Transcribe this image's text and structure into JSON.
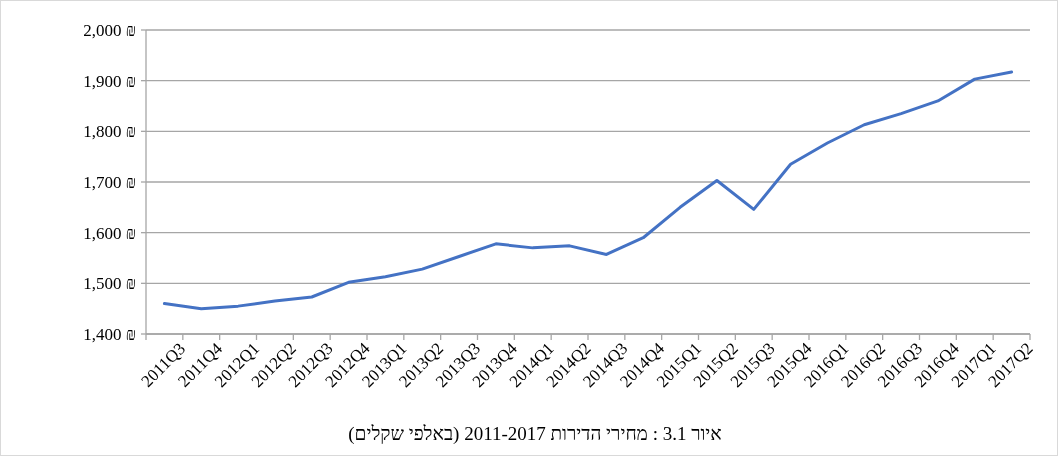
{
  "chart_data": {
    "type": "line",
    "annotations": [
      "איור 3.1 : מחירי הדירות 2011-2017 (באלפי שקלים)"
    ],
    "categories": [
      "2011Q3",
      "2011Q4",
      "2012Q1",
      "2012Q2",
      "2012Q3",
      "2012Q4",
      "2013Q1",
      "2013Q2",
      "2013Q3",
      "2013Q4",
      "2014Q1",
      "2014Q2",
      "2014Q3",
      "2014Q4",
      "2015Q1",
      "2015Q2",
      "2015Q3",
      "2015Q4",
      "2016Q1",
      "2016Q2",
      "2016Q3",
      "2016Q4",
      "2017Q1",
      "2017Q2"
    ],
    "series": [
      {
        "color": "#4472c4",
        "values": [
          1460,
          1450,
          1455,
          1465,
          1473,
          1502,
          1513,
          1528,
          1553,
          1578,
          1570,
          1574,
          1557,
          1590,
          1650,
          1703,
          1646,
          1735,
          1777,
          1813,
          1835,
          1860,
          1903,
          1917
        ]
      }
    ],
    "ylim": [
      1400,
      2000
    ],
    "yticks": [
      {
        "value": 1400,
        "label": "1,400 ₪"
      },
      {
        "value": 1500,
        "label": "1,500 ₪"
      },
      {
        "value": 1600,
        "label": "1,600 ₪"
      },
      {
        "value": 1700,
        "label": "1,700 ₪"
      },
      {
        "value": 1800,
        "label": "1,800 ₪"
      },
      {
        "value": 1900,
        "label": "1,900 ₪"
      },
      {
        "value": 2000,
        "label": "2,000 ₪"
      }
    ],
    "grid": "y",
    "marker": "none",
    "line_style": "solid"
  }
}
